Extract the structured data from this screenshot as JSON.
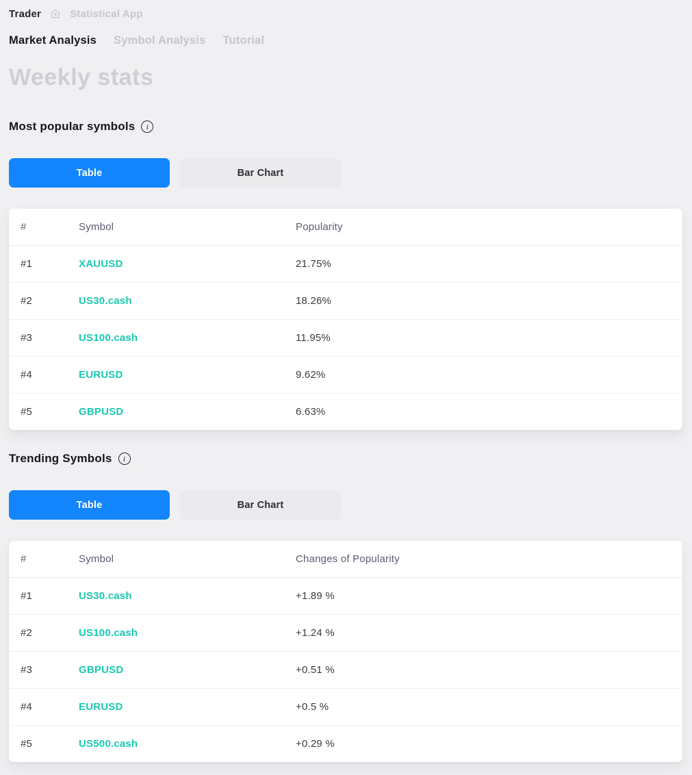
{
  "breadcrumb": {
    "app": "Trader",
    "page": "Statistical App"
  },
  "tabs": {
    "market": "Market Analysis",
    "symbol": "Symbol Analysis",
    "tutorial": "Tutorial"
  },
  "page_title": "Weekly stats",
  "colors": {
    "accent_blue": "#1385fd",
    "symbol_teal": "#18c9b0",
    "page_bg": "#f0f0f2",
    "inactive_gray": "#c6c6ca"
  },
  "icons": {
    "breadcrumb_home": "home-icon",
    "section_info": "info-icon"
  },
  "sections": {
    "most_popular": {
      "heading": "Most popular symbols",
      "toggle": {
        "table": "Table",
        "bar_chart": "Bar Chart",
        "selected": "Table"
      },
      "columns": {
        "rank": "#",
        "symbol": "Symbol",
        "value": "Popularity"
      },
      "rows": [
        {
          "rank": "#1",
          "symbol": "XAUUSD",
          "value": "21.75%"
        },
        {
          "rank": "#2",
          "symbol": "US30.cash",
          "value": "18.26%"
        },
        {
          "rank": "#3",
          "symbol": "US100.cash",
          "value": "11.95%"
        },
        {
          "rank": "#4",
          "symbol": "EURUSD",
          "value": "9.62%"
        },
        {
          "rank": "#5",
          "symbol": "GBPUSD",
          "value": "6.63%"
        }
      ]
    },
    "trending": {
      "heading": "Trending Symbols",
      "toggle": {
        "table": "Table",
        "bar_chart": "Bar Chart",
        "selected": "Table"
      },
      "columns": {
        "rank": "#",
        "symbol": "Symbol",
        "value": "Changes of Popularity"
      },
      "rows": [
        {
          "rank": "#1",
          "symbol": "US30.cash",
          "value": "+1.89 %"
        },
        {
          "rank": "#2",
          "symbol": "US100.cash",
          "value": "+1.24 %"
        },
        {
          "rank": "#3",
          "symbol": "GBPUSD",
          "value": "+0.51 %"
        },
        {
          "rank": "#4",
          "symbol": "EURUSD",
          "value": "+0.5 %"
        },
        {
          "rank": "#5",
          "symbol": "US500.cash",
          "value": "+0.29 %"
        }
      ]
    }
  }
}
